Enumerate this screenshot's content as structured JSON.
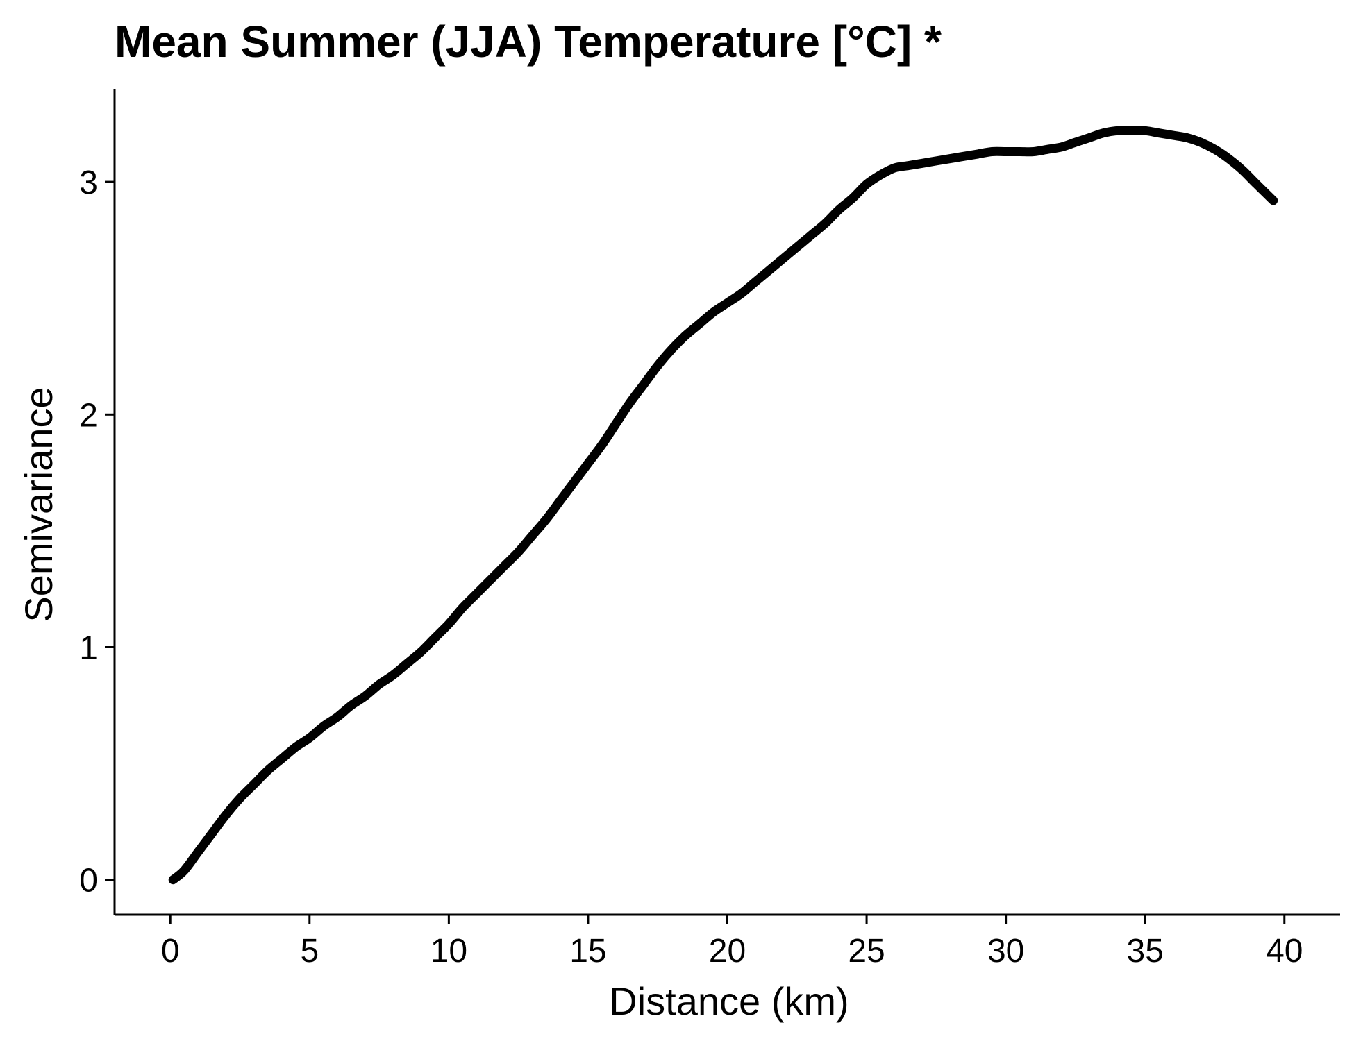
{
  "chart_data": {
    "type": "line",
    "title": "Mean Summer (JJA) Temperature [°C] *",
    "xlabel": "Distance (km)",
    "ylabel": "Semivariance",
    "xlim": [
      -2,
      42
    ],
    "ylim": [
      -0.15,
      3.4
    ],
    "x_ticks": [
      0,
      5,
      10,
      15,
      20,
      25,
      30,
      35,
      40
    ],
    "y_ticks": [
      0,
      1,
      2,
      3
    ],
    "grid": false,
    "legend": "none",
    "line_color": "#000000",
    "series": [
      {
        "x": [
          0.1,
          0.5,
          1,
          1.5,
          2,
          2.5,
          3,
          3.5,
          4,
          4.5,
          5,
          5.5,
          6,
          6.5,
          7,
          7.5,
          8,
          8.5,
          9,
          9.5,
          10,
          10.5,
          11,
          11.5,
          12,
          12.5,
          13,
          13.5,
          14,
          14.5,
          15,
          15.5,
          16,
          16.5,
          17,
          17.5,
          18,
          18.5,
          19,
          19.5,
          20,
          20.5,
          21,
          21.5,
          22,
          22.5,
          23,
          23.5,
          24,
          24.5,
          25,
          25.5,
          26,
          26.5,
          27,
          27.5,
          28,
          28.5,
          29,
          29.5,
          30,
          30.5,
          31,
          31.5,
          32,
          32.5,
          33,
          33.5,
          34,
          34.5,
          35,
          35.5,
          36,
          36.5,
          37,
          37.5,
          38,
          38.5,
          39,
          39.6
        ],
        "y": [
          0.0,
          0.04,
          0.12,
          0.2,
          0.28,
          0.35,
          0.41,
          0.47,
          0.52,
          0.57,
          0.61,
          0.66,
          0.7,
          0.75,
          0.79,
          0.84,
          0.88,
          0.93,
          0.98,
          1.04,
          1.1,
          1.17,
          1.23,
          1.29,
          1.35,
          1.41,
          1.48,
          1.55,
          1.63,
          1.71,
          1.79,
          1.87,
          1.96,
          2.05,
          2.13,
          2.21,
          2.28,
          2.34,
          2.39,
          2.44,
          2.48,
          2.52,
          2.57,
          2.62,
          2.67,
          2.72,
          2.77,
          2.82,
          2.88,
          2.93,
          2.99,
          3.03,
          3.06,
          3.07,
          3.08,
          3.09,
          3.1,
          3.11,
          3.12,
          3.13,
          3.13,
          3.13,
          3.13,
          3.14,
          3.15,
          3.17,
          3.19,
          3.21,
          3.22,
          3.22,
          3.22,
          3.21,
          3.2,
          3.19,
          3.17,
          3.14,
          3.1,
          3.05,
          2.99,
          2.92
        ]
      }
    ]
  }
}
